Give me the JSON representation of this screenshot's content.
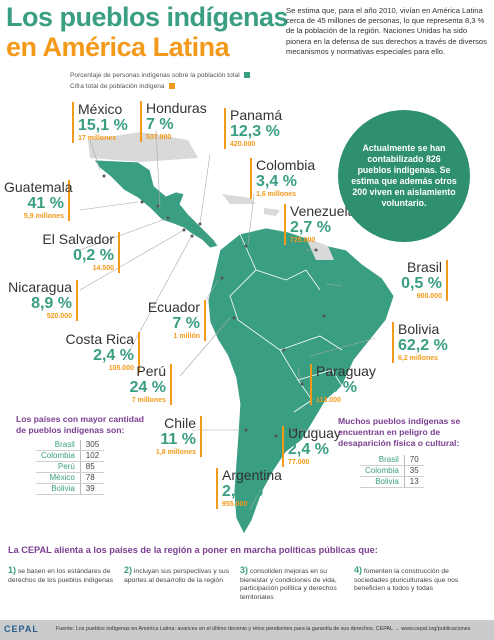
{
  "title": {
    "line1": "Los pueblos indígenas",
    "line2": "en América Latina"
  },
  "intro": "Se estima que, para el año 2010, vivían en América Latina cerca de 45 millones de personas, lo que representa 8,3 % de la población de la región. Naciones Unidas ha sido pionera en la defensa de sus derechos a través de diversos mecanismos y normativas especiales para ello.",
  "legend": {
    "pct_label": "Porcentaje de personas indígenas sobre la población total",
    "pop_label": "Cifra total de población indígena",
    "pct_color": "#3a9e83",
    "pop_color": "#f39a1a"
  },
  "countries": {
    "mexico": {
      "name": "México",
      "pct": "15,1 %",
      "pop": "17 millones"
    },
    "honduras": {
      "name": "Honduras",
      "pct": "7 %",
      "pop": "537.000"
    },
    "panama": {
      "name": "Panamá",
      "pct": "12,3 %",
      "pop": "420.000"
    },
    "colombia": {
      "name": "Colombia",
      "pct": "3,4 %",
      "pop": "1,6 millones"
    },
    "venezuela": {
      "name": "Venezuela",
      "pct": "2,7 %",
      "pop": "725.000"
    },
    "guatemala": {
      "name": "Guatemala",
      "pct": "41 %",
      "pop": "5,9 millones"
    },
    "elsalvador": {
      "name": "El Salvador",
      "pct": "0,2 %",
      "pop": "14.500"
    },
    "nicaragua": {
      "name": "Nicaragua",
      "pct": "8,9 %",
      "pop": "520.000"
    },
    "brasil": {
      "name": "Brasil",
      "pct": "0,5 %",
      "pop": "900.000"
    },
    "ecuador": {
      "name": "Ecuador",
      "pct": "7 %",
      "pop": "1 millón"
    },
    "costarica": {
      "name": "Costa Rica",
      "pct": "2,4 %",
      "pop": "105.000"
    },
    "bolivia": {
      "name": "Bolivia",
      "pct": "62,2 %",
      "pop": "6,2 millones"
    },
    "peru": {
      "name": "Perú",
      "pct": "24 %",
      "pop": "7 millones"
    },
    "paraguay": {
      "name": "Paraguay",
      "pct": "1,8 %",
      "pop": "113.000"
    },
    "chile": {
      "name": "Chile",
      "pct": "11 %",
      "pop": "1,8 millones"
    },
    "uruguay": {
      "name": "Uruguay",
      "pct": "2,4 %",
      "pop": "77.000"
    },
    "argentina": {
      "name": "Argentina",
      "pct": "2,4 %",
      "pop": "955.000"
    }
  },
  "circle_text": "Actualmente se han contabilizado 826 pueblos indígenas. Se estima que además otros 200 viven en aislamiento voluntario.",
  "most_peoples": {
    "title": "Los países con mayor cantidad de pueblos indígenas son:",
    "rows": [
      {
        "country": "Brasil",
        "value": "305"
      },
      {
        "country": "Colombia",
        "value": "102"
      },
      {
        "country": "Perú",
        "value": "85"
      },
      {
        "country": "México",
        "value": "78"
      },
      {
        "country": "Bolivia",
        "value": "39"
      }
    ]
  },
  "danger": {
    "title": "Muchos pueblos indígenas se encuentran en peligro de desaparición física o cultural:",
    "rows": [
      {
        "country": "Brasil",
        "value": "70"
      },
      {
        "country": "Colombia",
        "value": "35"
      },
      {
        "country": "Bolivia",
        "value": "13"
      }
    ]
  },
  "cepal_heading": "La CEPAL alienta a los países de la región a poner en marcha políticas públicas que:",
  "tips": [
    {
      "num": "1)",
      "text": "se basen en los estándares de derechos de los pueblos indígenas"
    },
    {
      "num": "2)",
      "text": "incluyan sus perspectivas y sus aportes al desarrollo de la región"
    },
    {
      "num": "3)",
      "text": "consoliden mejoras en su bienestar y condiciones de vida, participación política y derechos territoriales"
    },
    {
      "num": "4)",
      "text": "fomenten la construcción de sociedades pluriculturales que nos beneficien a todos y todas"
    }
  ],
  "footer": {
    "logo": "CEPAL",
    "source": "Fuente: Los pueblos indígenas en América Latina: avances en el último decenio y retos pendientes para la garantía de sus derechos, CEPAL → www.cepal.org/publicaciones"
  },
  "map_colors": {
    "land": "#3a9e83",
    "other": "#d9d9d9",
    "border": "#ffffff"
  }
}
